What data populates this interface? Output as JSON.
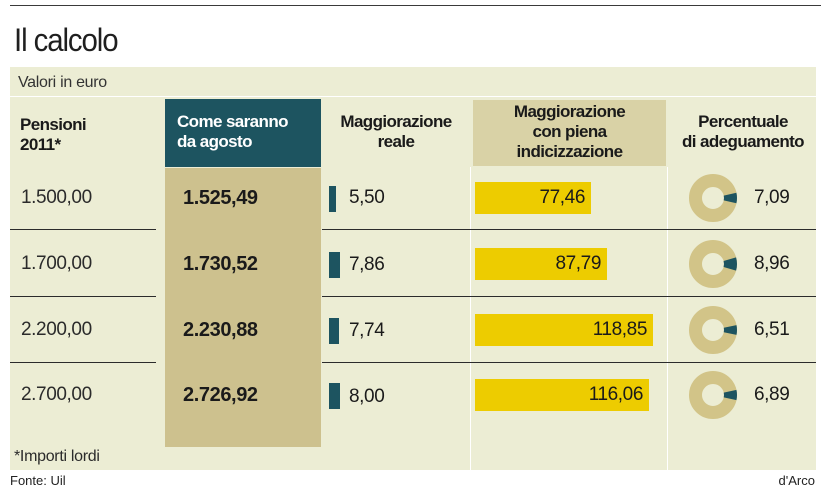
{
  "title": "Il calcolo",
  "unit_label": "Valori in euro",
  "footnote": "*Importi lordi",
  "source": "Fonte: Uil",
  "credit": "d'Arco",
  "colors": {
    "teal": "#1d5460",
    "yellow": "#edcc00",
    "panel": "#ecedd4",
    "highlight": "#cdc18e",
    "donut_ring": "#d2c488"
  },
  "chart_data": {
    "type": "table",
    "columns": [
      {
        "key": "pension",
        "label_lines": [
          "Pensioni",
          "2011*"
        ]
      },
      {
        "key": "future",
        "label_lines": [
          "Come saranno",
          "da agosto"
        ]
      },
      {
        "key": "real",
        "label_lines": [
          "Maggiorazione",
          "reale"
        ]
      },
      {
        "key": "full",
        "label_lines": [
          "Maggiorazione",
          "con piena",
          "indicizzazione"
        ]
      },
      {
        "key": "pct",
        "label_lines": [
          "Percentuale",
          "di adeguamento"
        ]
      }
    ],
    "rows": [
      {
        "pension": "1.500,00",
        "future": "1.525,49",
        "real": "5,50",
        "full": "77,46",
        "pct": "7,09"
      },
      {
        "pension": "1.700,00",
        "future": "1.730,52",
        "real": "7,86",
        "full": "87,79",
        "pct": "8,96"
      },
      {
        "pension": "2.200,00",
        "future": "2.230,88",
        "real": "7,74",
        "full": "118,85",
        "pct": "6,51"
      },
      {
        "pension": "2.700,00",
        "future": "2.726,92",
        "real": "8,00",
        "full": "116,06",
        "pct": "6,89"
      }
    ],
    "values": {
      "real": [
        5.5,
        7.86,
        7.74,
        8.0
      ],
      "full": [
        77.46,
        87.79,
        118.85,
        116.06
      ],
      "pct": [
        7.09,
        8.96,
        6.51,
        6.89
      ]
    }
  }
}
